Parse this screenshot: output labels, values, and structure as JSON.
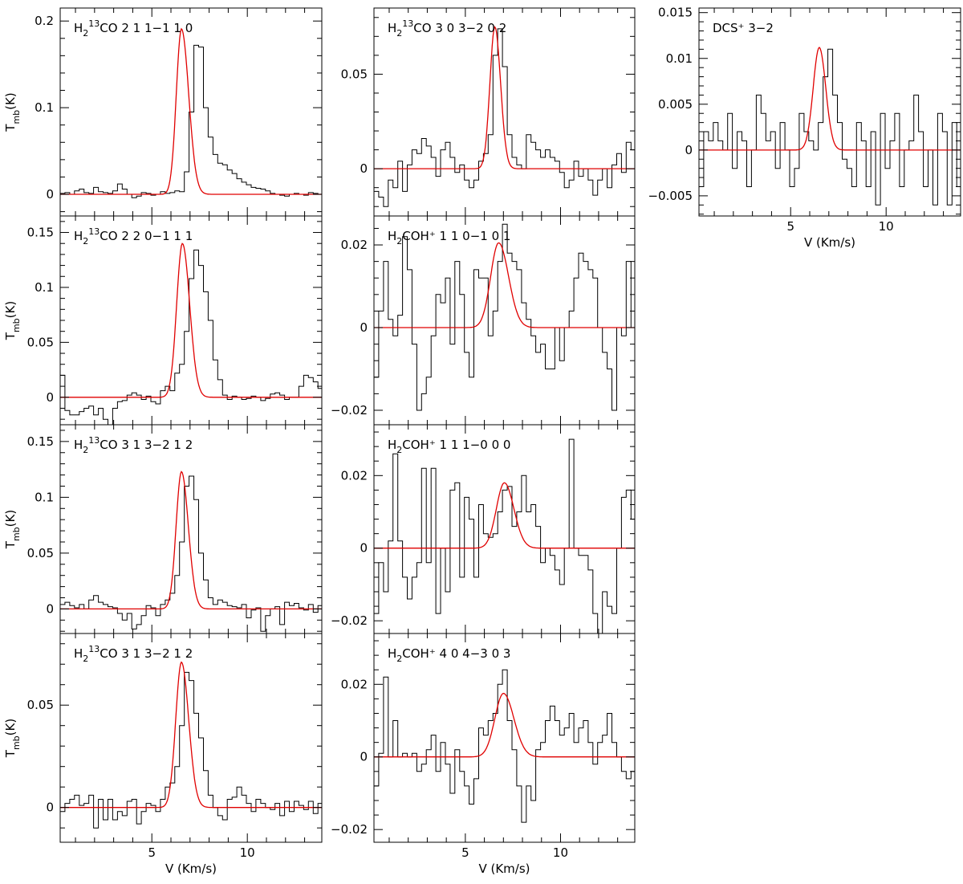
{
  "chart_data": [
    {
      "type": "line",
      "label": {
        "pre": "H",
        "sub1": "2",
        "sup": "13",
        "post": "CO 2 1 1−1 1 0"
      },
      "ylabel": {
        "main": "T",
        "sub": "mb",
        "post": "(K)"
      },
      "xlabel": "",
      "xlim": [
        0.2,
        13.9
      ],
      "ylim": [
        -0.025,
        0.215
      ],
      "yticks": [
        0,
        0.1,
        0.2
      ],
      "ytick_labels": [
        "0",
        "0.1",
        "0.2"
      ],
      "xticks": [
        5,
        10
      ],
      "xtick_labels": [
        "",
        ""
      ],
      "grid": false,
      "series": [
        {
          "kind": "histogram",
          "color": "#000000",
          "bin_width": 0.25,
          "x0": 0.2,
          "values": [
            0.001,
            0.002,
            0.0,
            0.004,
            0.006,
            0.002,
            0.001,
            0.008,
            0.003,
            0.002,
            0.001,
            0.004,
            0.012,
            0.006,
            0.0,
            -0.004,
            -0.002,
            0.002,
            0.001,
            -0.001,
            0.0,
            0.003,
            0.001,
            0.002,
            0.004,
            0.003,
            0.026,
            0.095,
            0.172,
            0.17,
            0.1,
            0.066,
            0.046,
            0.036,
            0.034,
            0.028,
            0.024,
            0.018,
            0.014,
            0.011,
            0.008,
            0.007,
            0.006,
            0.004,
            0.001,
            0.0,
            -0.001,
            -0.002,
            0.0,
            0.001,
            0.0,
            -0.001,
            0.002,
            0.001,
            0.0
          ]
        },
        {
          "kind": "gaussian_fit",
          "color": "#e00000",
          "peak": 0.191,
          "center": 6.55,
          "width_left": 0.27,
          "width_right": 0.38
        }
      ]
    },
    {
      "type": "line",
      "label": {
        "pre": "H",
        "sub1": "2",
        "sup": "13",
        "post": "CO 2 2 0−1 1 1"
      },
      "ylabel": {
        "main": "T",
        "sub": "mb",
        "post": "(K)"
      },
      "xlabel": "",
      "xlim": [
        0.2,
        13.9
      ],
      "ylim": [
        -0.025,
        0.165
      ],
      "yticks": [
        0,
        0.05,
        0.1,
        0.15
      ],
      "ytick_labels": [
        "0",
        "0.05",
        "0.1",
        "0.15"
      ],
      "xticks": [
        5,
        10
      ],
      "xtick_labels": [
        "",
        ""
      ],
      "grid": false,
      "series": [
        {
          "kind": "histogram",
          "color": "#000000",
          "bin_width": 0.25,
          "x0": 0.2,
          "values": [
            0.02,
            -0.012,
            -0.016,
            -0.016,
            -0.013,
            -0.01,
            -0.008,
            -0.016,
            -0.01,
            -0.02,
            -0.025,
            -0.01,
            -0.004,
            -0.003,
            0.002,
            0.004,
            0.002,
            -0.002,
            0.001,
            -0.004,
            -0.006,
            0.006,
            0.01,
            0.006,
            0.022,
            0.03,
            0.06,
            0.108,
            0.134,
            0.12,
            0.096,
            0.07,
            0.034,
            0.016,
            0.002,
            -0.002,
            0.001,
            0.0,
            -0.002,
            -0.001,
            0.001,
            0.0,
            -0.003,
            -0.001,
            0.003,
            0.004,
            0.002,
            -0.002,
            0.0,
            0.0,
            0.01,
            0.02,
            0.018,
            0.014,
            0.008
          ]
        },
        {
          "kind": "gaussian_fit",
          "color": "#e00000",
          "peak": 0.14,
          "center": 6.6,
          "width_left": 0.3,
          "width_right": 0.38
        }
      ]
    },
    {
      "type": "line",
      "label": {
        "pre": "H",
        "sub1": "2",
        "sup": "13",
        "post": "CO 3 1 3−2 1 2"
      },
      "ylabel": {
        "main": "T",
        "sub": "mb",
        "post": "(K)"
      },
      "xlabel": "",
      "xlim": [
        0.2,
        13.9
      ],
      "ylim": [
        -0.022,
        0.165
      ],
      "yticks": [
        0,
        0.05,
        0.1,
        0.15
      ],
      "ytick_labels": [
        "0",
        "0.05",
        "0.1",
        "0.15"
      ],
      "xticks": [
        5,
        10
      ],
      "xtick_labels": [
        "",
        ""
      ],
      "grid": false,
      "series": [
        {
          "kind": "histogram",
          "color": "#000000",
          "bin_width": 0.25,
          "x0": 0.2,
          "values": [
            0.004,
            0.006,
            0.003,
            0.001,
            0.004,
            0.0,
            0.008,
            0.012,
            0.006,
            0.004,
            0.002,
            0.001,
            -0.004,
            -0.01,
            -0.004,
            -0.018,
            -0.014,
            -0.006,
            0.003,
            0.001,
            -0.006,
            0.004,
            0.008,
            0.014,
            0.03,
            0.06,
            0.11,
            0.119,
            0.098,
            0.05,
            0.026,
            0.01,
            0.004,
            0.008,
            0.006,
            0.003,
            0.002,
            0.001,
            0.004,
            -0.008,
            -0.001,
            0.001,
            -0.02,
            -0.006,
            0.0,
            0.002,
            -0.014,
            0.006,
            0.003,
            0.005,
            0.001,
            -0.001,
            0.004,
            -0.003,
            0.003
          ]
        },
        {
          "kind": "gaussian_fit",
          "color": "#e00000",
          "peak": 0.123,
          "center": 6.55,
          "width_left": 0.28,
          "width_right": 0.36
        }
      ]
    },
    {
      "type": "line",
      "label": {
        "pre": "H",
        "sub1": "2",
        "sup": "13",
        "post": "CO 3 1 3−2 1 2"
      },
      "ylabel": {
        "main": "T",
        "sub": "mb",
        "post": "(K)"
      },
      "xlabel": "V (Km/s)",
      "xlim": [
        0.2,
        13.9
      ],
      "ylim": [
        -0.017,
        0.085
      ],
      "yticks": [
        0,
        0.05
      ],
      "ytick_labels": [
        "0",
        "0.05"
      ],
      "xticks": [
        5,
        10
      ],
      "xtick_labels": [
        "5",
        "10"
      ],
      "grid": false,
      "series": [
        {
          "kind": "histogram",
          "color": "#000000",
          "bin_width": 0.25,
          "x0": 0.2,
          "values": [
            -0.002,
            0.002,
            0.004,
            0.006,
            0.001,
            0.002,
            0.006,
            -0.01,
            0.004,
            -0.006,
            0.004,
            -0.006,
            -0.002,
            -0.004,
            0.003,
            0.004,
            -0.008,
            -0.002,
            0.002,
            0.001,
            -0.002,
            0.004,
            0.01,
            0.012,
            0.02,
            0.04,
            0.066,
            0.062,
            0.046,
            0.034,
            0.018,
            0.006,
            0.0,
            -0.004,
            -0.006,
            0.004,
            0.005,
            0.01,
            0.006,
            0.002,
            -0.002,
            0.004,
            0.002,
            0.0,
            -0.001,
            0.002,
            -0.004,
            0.003,
            -0.002,
            0.003,
            0.001,
            -0.001,
            0.003,
            -0.003,
            0.002
          ]
        },
        {
          "kind": "gaussian_fit",
          "color": "#e00000",
          "peak": 0.071,
          "center": 6.55,
          "width_left": 0.3,
          "width_right": 0.38
        }
      ]
    },
    {
      "type": "line",
      "label": {
        "pre": "H",
        "sub1": "2",
        "sup": "13",
        "post": "CO 3 0 3−2 0 2"
      },
      "ylabel": {
        "main": "",
        "sub": "",
        "post": ""
      },
      "xlabel": "",
      "xlim": [
        0.2,
        13.9
      ],
      "ylim": [
        -0.025,
        0.085
      ],
      "yticks": [
        0,
        0.05
      ],
      "ytick_labels": [
        "0",
        "0.05"
      ],
      "xticks": [
        5,
        10
      ],
      "xtick_labels": [
        "",
        ""
      ],
      "grid": false,
      "series": [
        {
          "kind": "histogram",
          "color": "#000000",
          "bin_width": 0.25,
          "x0": 0.2,
          "values": [
            -0.012,
            -0.015,
            -0.02,
            -0.006,
            -0.01,
            0.004,
            -0.012,
            0.002,
            0.01,
            0.008,
            0.016,
            0.012,
            0.006,
            -0.004,
            0.01,
            0.014,
            0.006,
            -0.002,
            0.002,
            -0.006,
            -0.01,
            -0.006,
            0.004,
            0.008,
            0.018,
            0.06,
            0.074,
            0.054,
            0.018,
            0.006,
            0.002,
            0.0,
            0.018,
            0.014,
            0.01,
            0.006,
            0.01,
            0.006,
            0.004,
            -0.002,
            -0.01,
            -0.006,
            0.004,
            -0.004,
            0.0,
            -0.006,
            -0.014,
            -0.006,
            0.0,
            -0.01,
            0.002,
            0.008,
            -0.002,
            0.014,
            0.01
          ]
        },
        {
          "kind": "gaussian_fit",
          "color": "#e00000",
          "peak": 0.075,
          "center": 6.55,
          "width_left": 0.26,
          "width_right": 0.3
        }
      ]
    },
    {
      "type": "line",
      "label": {
        "pre": "H",
        "sub1": "2",
        "sup": "",
        "post": "COH⁺ 1 1 0−1 0 1"
      },
      "ylabel": {
        "main": "",
        "sub": "",
        "post": ""
      },
      "xlabel": "",
      "xlim": [
        0.2,
        13.9
      ],
      "ylim": [
        -0.0235,
        0.027
      ],
      "yticks": [
        -0.02,
        0,
        0.02
      ],
      "ytick_labels": [
        "−0.02",
        "0",
        "0.02"
      ],
      "xticks": [
        5,
        10
      ],
      "xtick_labels": [
        "",
        ""
      ],
      "grid": false,
      "series": [
        {
          "kind": "histogram",
          "color": "#000000",
          "bin_width": 0.25,
          "x0": 0.2,
          "values": [
            -0.012,
            0.004,
            0.016,
            0.002,
            -0.002,
            0.003,
            0.022,
            0.014,
            -0.004,
            -0.02,
            -0.016,
            -0.012,
            -0.002,
            0.008,
            0.006,
            0.012,
            -0.004,
            0.016,
            0.008,
            -0.006,
            -0.012,
            0.014,
            0.012,
            0.012,
            -0.002,
            0.004,
            0.016,
            0.025,
            0.018,
            0.016,
            0.014,
            0.006,
            0.002,
            -0.002,
            -0.006,
            -0.004,
            -0.01,
            -0.01,
            0.0,
            -0.008,
            0.0,
            0.004,
            0.012,
            0.018,
            0.016,
            0.014,
            0.012,
            0.0,
            -0.006,
            -0.01,
            -0.02,
            0.0,
            -0.002,
            0.016,
            0.0
          ]
        },
        {
          "kind": "gaussian_fit",
          "color": "#e00000",
          "peak": 0.0205,
          "center": 6.75,
          "width_left": 0.42,
          "width_right": 0.52
        }
      ]
    },
    {
      "type": "line",
      "label": {
        "pre": "H",
        "sub1": "2",
        "sup": "",
        "post": "COH⁺ 1 1 1−0 0 0"
      },
      "ylabel": {
        "main": "",
        "sub": "",
        "post": ""
      },
      "xlabel": "",
      "xlim": [
        0.2,
        13.9
      ],
      "ylim": [
        -0.0235,
        0.034
      ],
      "yticks": [
        -0.02,
        0,
        0.02
      ],
      "ytick_labels": [
        "−0.02",
        "0",
        "0.02"
      ],
      "xticks": [
        5,
        10
      ],
      "xtick_labels": [
        "",
        ""
      ],
      "grid": false,
      "series": [
        {
          "kind": "histogram",
          "color": "#000000",
          "bin_width": 0.25,
          "x0": 0.2,
          "values": [
            -0.018,
            -0.004,
            -0.012,
            0.002,
            0.026,
            0.002,
            -0.008,
            -0.014,
            -0.008,
            -0.004,
            0.022,
            -0.004,
            0.022,
            -0.018,
            0.0,
            -0.012,
            0.016,
            0.018,
            -0.008,
            0.014,
            0.008,
            -0.008,
            0.012,
            0.004,
            0.003,
            0.004,
            0.01,
            0.016,
            0.017,
            0.006,
            0.01,
            0.02,
            0.01,
            0.012,
            0.006,
            -0.004,
            0.0,
            -0.002,
            -0.006,
            -0.01,
            0.0,
            0.03,
            0.0,
            -0.002,
            -0.002,
            -0.006,
            -0.018,
            -0.024,
            -0.012,
            -0.016,
            -0.018,
            0.0,
            0.014,
            0.016,
            0.008
          ]
        },
        {
          "kind": "gaussian_fit",
          "color": "#e00000",
          "peak": 0.018,
          "center": 7.05,
          "width_left": 0.42,
          "width_right": 0.5
        }
      ]
    },
    {
      "type": "line",
      "label": {
        "pre": "H",
        "sub1": "2",
        "sup": "",
        "post": "COH⁺ 4 0 4−3 0 3"
      },
      "ylabel": {
        "main": "",
        "sub": "",
        "post": ""
      },
      "xlabel": "V (Km/s)",
      "xlim": [
        0.2,
        13.9
      ],
      "ylim": [
        -0.0235,
        0.034
      ],
      "yticks": [
        -0.02,
        0,
        0.02
      ],
      "ytick_labels": [
        "−0.02",
        "0",
        "0.02"
      ],
      "xticks": [
        5,
        10
      ],
      "xtick_labels": [
        "5",
        "10"
      ],
      "grid": false,
      "series": [
        {
          "kind": "histogram",
          "color": "#000000",
          "bin_width": 0.25,
          "x0": 0.2,
          "values": [
            -0.008,
            0.001,
            0.022,
            0.0,
            0.01,
            0.0,
            0.001,
            0.0,
            0.001,
            -0.004,
            -0.002,
            0.002,
            0.006,
            -0.004,
            0.004,
            -0.002,
            -0.01,
            0.002,
            -0.004,
            -0.008,
            -0.013,
            -0.006,
            0.008,
            0.006,
            0.01,
            0.012,
            0.02,
            0.024,
            0.01,
            0.002,
            -0.008,
            -0.018,
            -0.008,
            -0.012,
            0.002,
            0.004,
            0.01,
            0.014,
            0.01,
            0.006,
            0.008,
            0.012,
            0.004,
            0.008,
            0.01,
            0.004,
            -0.002,
            0.004,
            0.006,
            0.012,
            0.004,
            0.0,
            -0.004,
            -0.006,
            -0.004
          ]
        },
        {
          "kind": "gaussian_fit",
          "color": "#e00000",
          "peak": 0.0175,
          "center": 7.0,
          "width_left": 0.45,
          "width_right": 0.55
        }
      ]
    },
    {
      "type": "line",
      "label": {
        "pre": "DCS⁺ 3−2",
        "sub1": "",
        "sup": "",
        "post": ""
      },
      "ylabel": {
        "main": "",
        "sub": "",
        "post": ""
      },
      "xlabel": "V (Km/s)",
      "xlim": [
        0.2,
        13.9
      ],
      "ylim": [
        -0.0072,
        0.0155
      ],
      "yticks": [
        -0.005,
        0,
        0.005,
        0.01,
        0.015
      ],
      "ytick_labels": [
        "−0.005",
        "0",
        "0.005",
        "0.01",
        "0.015"
      ],
      "xticks": [
        5,
        10
      ],
      "xtick_labels": [
        "5",
        "10"
      ],
      "grid": false,
      "series": [
        {
          "kind": "histogram",
          "color": "#000000",
          "bin_width": 0.25,
          "x0": 0.2,
          "values": [
            -0.004,
            0.002,
            0.001,
            0.003,
            0.001,
            0.0,
            0.004,
            -0.002,
            0.002,
            0.001,
            -0.004,
            0.0,
            0.006,
            0.004,
            0.001,
            0.002,
            -0.002,
            0.003,
            0.0,
            -0.004,
            -0.002,
            0.004,
            0.002,
            0.001,
            0.0,
            0.003,
            0.008,
            0.011,
            0.006,
            0.003,
            -0.001,
            -0.002,
            -0.004,
            0.003,
            0.001,
            -0.004,
            0.002,
            -0.006,
            0.004,
            -0.002,
            0.001,
            0.004,
            -0.004,
            0.0,
            0.001,
            0.006,
            0.002,
            -0.004,
            0.0,
            -0.006,
            0.004,
            0.002,
            -0.006,
            0.003,
            -0.004
          ]
        },
        {
          "kind": "gaussian_fit",
          "color": "#e00000",
          "peak": 0.0112,
          "center": 6.5,
          "width_left": 0.32,
          "width_right": 0.34
        }
      ]
    }
  ]
}
